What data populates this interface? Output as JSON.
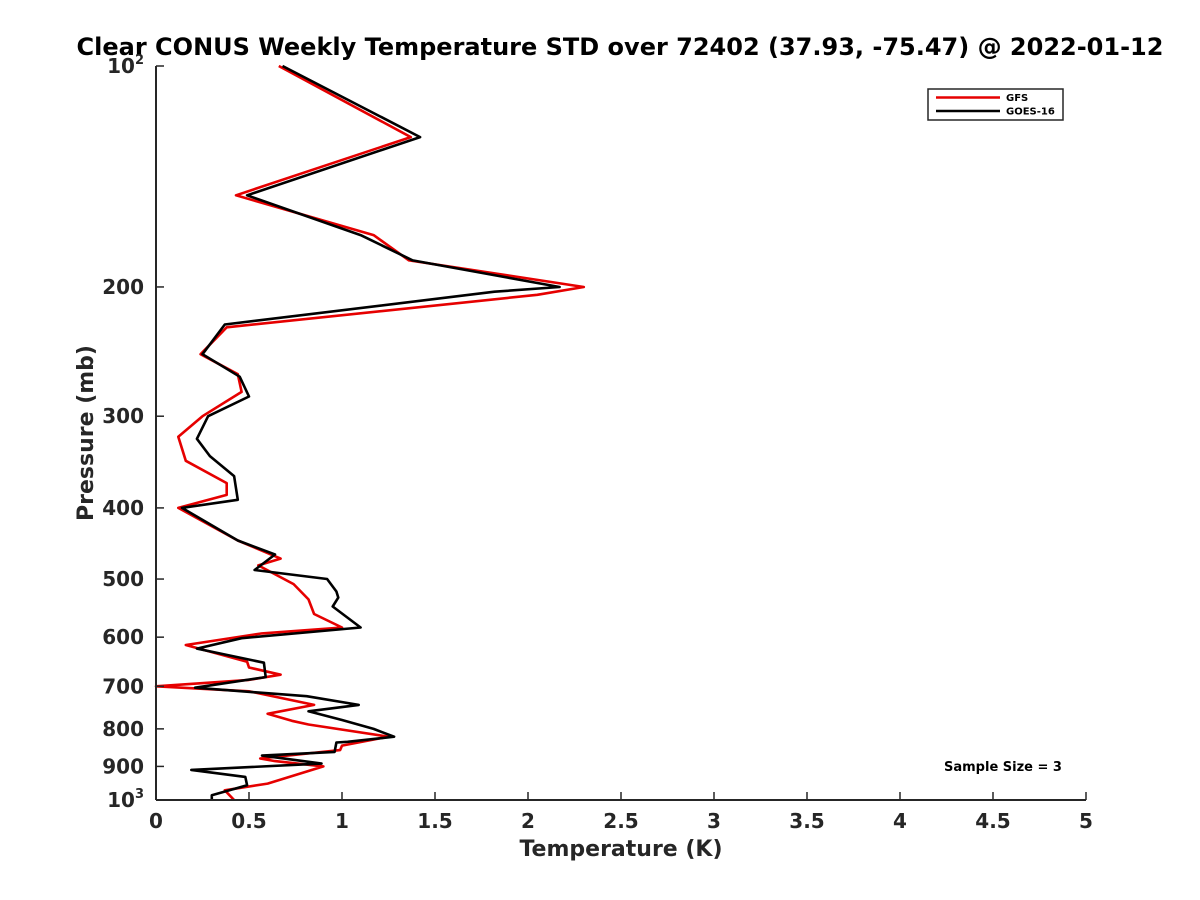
{
  "chart_data": {
    "type": "line",
    "title": "Clear CONUS Weekly Temperature STD over 72402 (37.93, -75.47) @ 2022-01-12",
    "xlabel": "Temperature (K)",
    "ylabel": "Pressure (mb)",
    "xlim": [
      0,
      5
    ],
    "ylim": [
      1000,
      100
    ],
    "y_scale": "log",
    "y_reversed": true,
    "x_ticks": [
      "0",
      "0.5",
      "1",
      "1.5",
      "2",
      "2.5",
      "3",
      "3.5",
      "4",
      "4.5",
      "5"
    ],
    "y_ticks": [
      {
        "value": 100,
        "label": "10",
        "exp": "2"
      },
      {
        "value": 200,
        "label": "200"
      },
      {
        "value": 300,
        "label": "300"
      },
      {
        "value": 400,
        "label": "400"
      },
      {
        "value": 500,
        "label": "500"
      },
      {
        "value": 600,
        "label": "600"
      },
      {
        "value": 700,
        "label": "700"
      },
      {
        "value": 800,
        "label": "800"
      },
      {
        "value": 900,
        "label": "900"
      },
      {
        "value": 1000,
        "label": "10",
        "exp": "3"
      }
    ],
    "grid": false,
    "legend_position": "top-right",
    "annotation": "Sample Size = 3",
    "series": [
      {
        "name": "GFS",
        "color": "#e60000",
        "points": [
          [
            0.66,
            100
          ],
          [
            1.37,
            125
          ],
          [
            0.43,
            150
          ],
          [
            1.17,
            170
          ],
          [
            1.36,
            184
          ],
          [
            2.3,
            200
          ],
          [
            2.05,
            205
          ],
          [
            0.38,
            227
          ],
          [
            0.24,
            247
          ],
          [
            0.44,
            263
          ],
          [
            0.46,
            278
          ],
          [
            0.25,
            300
          ],
          [
            0.12,
            320
          ],
          [
            0.16,
            345
          ],
          [
            0.38,
            370
          ],
          [
            0.38,
            384
          ],
          [
            0.12,
            400
          ],
          [
            0.44,
            443
          ],
          [
            0.67,
            469
          ],
          [
            0.55,
            479
          ],
          [
            0.74,
            508
          ],
          [
            0.82,
            533
          ],
          [
            0.85,
            558
          ],
          [
            1.0,
            582
          ],
          [
            0.57,
            593
          ],
          [
            0.16,
            615
          ],
          [
            0.49,
            648
          ],
          [
            0.5,
            660
          ],
          [
            0.67,
            675
          ],
          [
            0.5,
            686
          ],
          [
            0.0,
            700
          ],
          [
            0.5,
            711
          ],
          [
            0.85,
            742
          ],
          [
            0.6,
            763
          ],
          [
            0.73,
            780
          ],
          [
            0.82,
            789
          ],
          [
            1.25,
            820
          ],
          [
            1.0,
            843
          ],
          [
            0.99,
            855
          ],
          [
            0.56,
            878
          ],
          [
            0.64,
            885
          ],
          [
            0.9,
            900
          ],
          [
            0.6,
            950
          ],
          [
            0.37,
            970
          ],
          [
            0.42,
            1000
          ]
        ]
      },
      {
        "name": "GOES-16",
        "color": "#000000",
        "points": [
          [
            0.68,
            100
          ],
          [
            1.42,
            125
          ],
          [
            0.49,
            150
          ],
          [
            1.1,
            170
          ],
          [
            1.38,
            184
          ],
          [
            2.17,
            200
          ],
          [
            1.82,
            203
          ],
          [
            0.37,
            225
          ],
          [
            0.25,
            247
          ],
          [
            0.45,
            265
          ],
          [
            0.5,
            282
          ],
          [
            0.28,
            300
          ],
          [
            0.22,
            322
          ],
          [
            0.29,
            340
          ],
          [
            0.42,
            362
          ],
          [
            0.44,
            390
          ],
          [
            0.14,
            400
          ],
          [
            0.44,
            443
          ],
          [
            0.64,
            463
          ],
          [
            0.53,
            486
          ],
          [
            0.92,
            500
          ],
          [
            0.97,
            520
          ],
          [
            0.98,
            530
          ],
          [
            0.95,
            545
          ],
          [
            1.1,
            582
          ],
          [
            0.46,
            602
          ],
          [
            0.22,
            622
          ],
          [
            0.58,
            650
          ],
          [
            0.59,
            680
          ],
          [
            0.21,
            703
          ],
          [
            0.81,
            722
          ],
          [
            1.09,
            742
          ],
          [
            0.82,
            757
          ],
          [
            1.0,
            778
          ],
          [
            1.17,
            800
          ],
          [
            1.28,
            820
          ],
          [
            1.03,
            833
          ],
          [
            0.97,
            835
          ],
          [
            0.96,
            860
          ],
          [
            0.57,
            870
          ],
          [
            0.89,
            892
          ],
          [
            0.19,
            910
          ],
          [
            0.48,
            930
          ],
          [
            0.49,
            955
          ],
          [
            0.3,
            985
          ],
          [
            0.3,
            1000
          ]
        ]
      }
    ]
  }
}
